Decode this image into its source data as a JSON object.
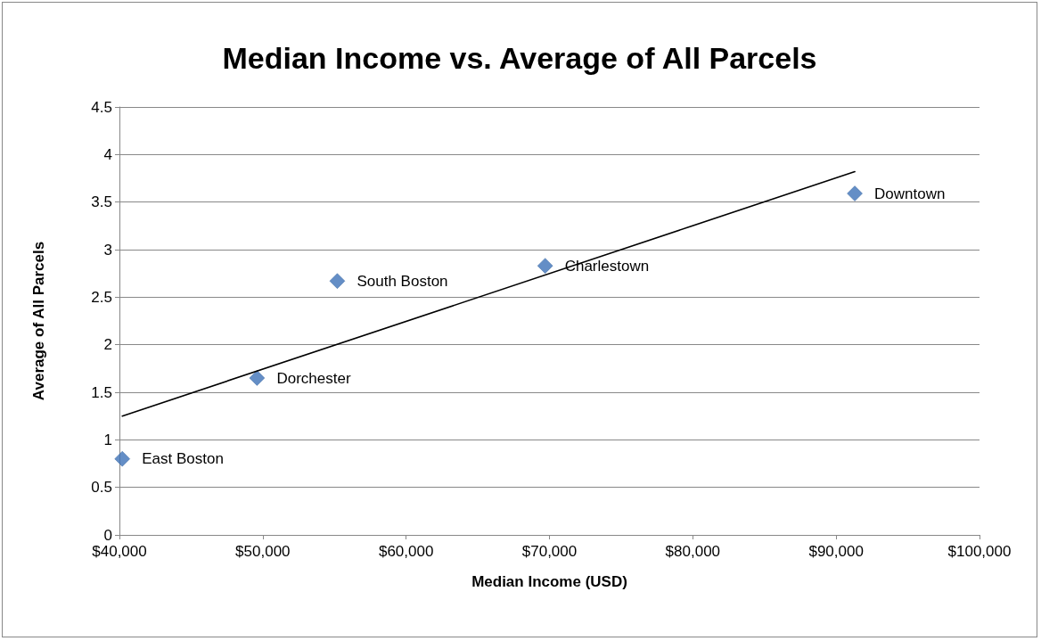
{
  "chart_data": {
    "type": "scatter",
    "title": "Median Income vs. Average of All Parcels",
    "xlabel": "Median Income (USD)",
    "ylabel": "Average of All Parcels",
    "series": [
      {
        "color": "#3d72b8",
        "marker": "diamond",
        "x": [
          40200,
          49600,
          55200,
          69700,
          91300
        ],
        "values": [
          0.8,
          1.65,
          2.67,
          2.83,
          3.59
        ]
      },
      {
        "type": "line",
        "color": "#000000",
        "marker": "none",
        "line_style": "solid",
        "x": [
          40200,
          91300
        ],
        "values": [
          1.25,
          3.82
        ]
      }
    ],
    "annotations": [
      {
        "text": "East Boston",
        "x": 40200,
        "y": 0.8
      },
      {
        "text": "Dorchester",
        "x": 49600,
        "y": 1.65
      },
      {
        "text": "South Boston",
        "x": 55200,
        "y": 2.67
      },
      {
        "text": "Charlestown",
        "x": 69700,
        "y": 2.83
      },
      {
        "text": "Downtown",
        "x": 91300,
        "y": 3.59
      }
    ],
    "xlim": [
      40000,
      100000
    ],
    "xticks": [
      {
        "value": 40000,
        "label": "$40,000"
      },
      {
        "value": 50000,
        "label": "$50,000"
      },
      {
        "value": 60000,
        "label": "$60,000"
      },
      {
        "value": 70000,
        "label": "$70,000"
      },
      {
        "value": 80000,
        "label": "$80,000"
      },
      {
        "value": 90000,
        "label": "$90,000"
      },
      {
        "value": 100000,
        "label": "$100,000"
      }
    ],
    "ylim": [
      0,
      4.5
    ],
    "yticks": [
      0,
      0.5,
      1,
      1.5,
      2,
      2.5,
      3,
      3.5,
      4,
      4.5
    ],
    "grid": "y"
  }
}
